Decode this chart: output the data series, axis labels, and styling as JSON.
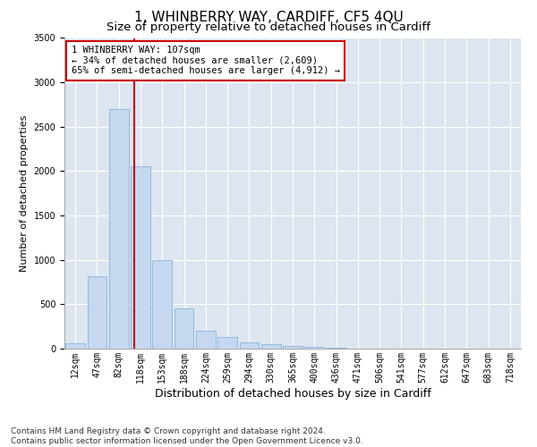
{
  "title": "1, WHINBERRY WAY, CARDIFF, CF5 4QU",
  "subtitle": "Size of property relative to detached houses in Cardiff",
  "xlabel": "Distribution of detached houses by size in Cardiff",
  "ylabel": "Number of detached properties",
  "categories": [
    "12sqm",
    "47sqm",
    "82sqm",
    "118sqm",
    "153sqm",
    "188sqm",
    "224sqm",
    "259sqm",
    "294sqm",
    "330sqm",
    "365sqm",
    "400sqm",
    "436sqm",
    "471sqm",
    "506sqm",
    "541sqm",
    "577sqm",
    "612sqm",
    "647sqm",
    "683sqm",
    "718sqm"
  ],
  "values": [
    65,
    820,
    2700,
    2050,
    1000,
    450,
    200,
    130,
    75,
    55,
    30,
    20,
    10,
    5,
    3,
    2,
    1,
    1,
    0,
    0,
    0
  ],
  "bar_color": "#c5d8f0",
  "bar_edge_color": "#7aadd4",
  "vline_color": "#cc0000",
  "vline_pos": 2.71,
  "annotation_line1": "1 WHINBERRY WAY: 107sqm",
  "annotation_line2": "← 34% of detached houses are smaller (2,609)",
  "annotation_line3": "65% of semi-detached houses are larger (4,912) →",
  "annotation_box_color": "#ffffff",
  "annotation_box_edge": "#cc0000",
  "footer": "Contains HM Land Registry data © Crown copyright and database right 2024.\nContains public sector information licensed under the Open Government Licence v3.0.",
  "ylim": [
    0,
    3500
  ],
  "plot_background": "#dde6f0",
  "title_fontsize": 11,
  "subtitle_fontsize": 9.5,
  "xlabel_fontsize": 9,
  "ylabel_fontsize": 8,
  "tick_fontsize": 7,
  "annotation_fontsize": 7.5,
  "footer_fontsize": 6.5
}
